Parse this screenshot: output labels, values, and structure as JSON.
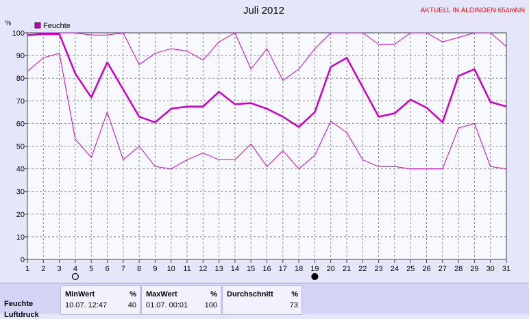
{
  "chart_data": {
    "type": "line",
    "title": "Juli 2012",
    "location_label": "AKTUELL IN ALDINGEN 654mNN",
    "ylabel": "%",
    "ylim": [
      0,
      100
    ],
    "xlim": [
      1,
      31
    ],
    "grid": true,
    "legend": {
      "placement": "top-left",
      "label": "Feuchte",
      "color": "#c800c8"
    },
    "x": [
      1,
      2,
      3,
      4,
      5,
      6,
      7,
      8,
      9,
      10,
      11,
      12,
      13,
      14,
      15,
      16,
      17,
      18,
      19,
      20,
      21,
      22,
      23,
      24,
      25,
      26,
      27,
      28,
      29,
      30,
      31
    ],
    "xticks": [
      "1",
      "2",
      "3",
      "4",
      "5",
      "6",
      "7",
      "8",
      "9",
      "10",
      "11",
      "12",
      "13",
      "14",
      "15",
      "16",
      "17",
      "18",
      "19",
      "20",
      "21",
      "22",
      "23",
      "24",
      "25",
      "26",
      "27",
      "28",
      "29",
      "30",
      "31"
    ],
    "yticks": [
      "0",
      "10",
      "20",
      "30",
      "40",
      "50",
      "60",
      "70",
      "80",
      "90",
      "100"
    ],
    "moon_markers": [
      {
        "day": 4,
        "phase": "full"
      },
      {
        "day": 19,
        "phase": "new"
      }
    ],
    "series": [
      {
        "role": "max",
        "color": "#c800c8",
        "values": [
          99,
          100,
          100,
          100,
          99,
          99,
          100,
          86,
          91,
          93,
          92,
          88,
          96,
          100,
          84,
          93,
          79,
          84,
          93,
          100,
          100,
          100,
          95,
          95,
          100,
          100,
          96,
          98,
          100,
          100,
          94
        ]
      },
      {
        "role": "avg",
        "color": "#c800c8",
        "values": [
          99,
          99.5,
          99.5,
          82,
          71.5,
          87,
          75,
          63,
          60.5,
          66.5,
          67.5,
          67.5,
          74,
          68.5,
          69,
          66.5,
          63,
          58.5,
          65,
          85,
          89,
          76,
          63,
          64.5,
          70.5,
          67,
          60.5,
          81,
          84,
          69.5,
          67.5
        ]
      },
      {
        "role": "min",
        "color": "#c800c8",
        "values": [
          83,
          89,
          91,
          53,
          45,
          65,
          44,
          50,
          41,
          40,
          44,
          47,
          44,
          44,
          51,
          41,
          48,
          40,
          46,
          61,
          56,
          44,
          41,
          41,
          40,
          40,
          40,
          58,
          60,
          41,
          40
        ]
      }
    ]
  },
  "stats": {
    "headers": {
      "min": "MinWert",
      "max": "MaxWert",
      "avg": "Durchschnitt",
      "unit": "%"
    },
    "rows": [
      {
        "label": "Feuchte",
        "min_time": "10.07.  12:47",
        "min_value": "40",
        "max_time": "01.07.  00:01",
        "max_value": "100",
        "avg_value": "73"
      }
    ],
    "partial_row_label": "Luftdruck"
  }
}
